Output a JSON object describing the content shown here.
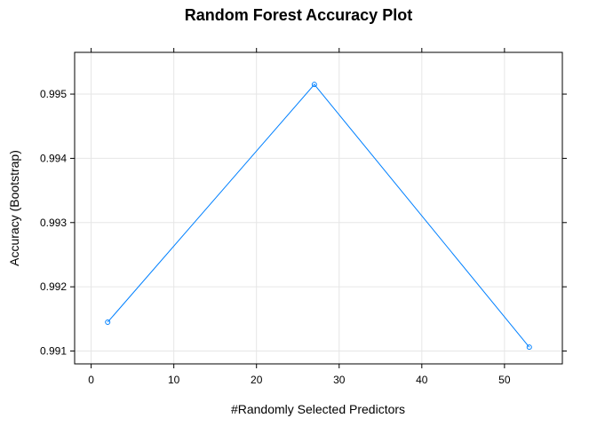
{
  "chart_data": {
    "type": "line",
    "title": "Random Forest Accuracy Plot",
    "xlabel": "#Randomly Selected Predictors",
    "ylabel": "Accuracy (Bootstrap)",
    "x": [
      2,
      27,
      53
    ],
    "series": [
      {
        "values": [
          0.99145,
          0.99515,
          0.99106
        ]
      }
    ],
    "xlim": [
      -2,
      57
    ],
    "ylim": [
      0.9908,
      0.99565
    ],
    "xticks": [
      0,
      10,
      20,
      30,
      40,
      50
    ],
    "xtick_labels": [
      "0",
      "10",
      "20",
      "30",
      "40",
      "50"
    ],
    "yticks": [
      0.991,
      0.992,
      0.993,
      0.994,
      0.995
    ],
    "ytick_labels": [
      "0.991",
      "0.992",
      "0.993",
      "0.994",
      "0.995"
    ],
    "grid": true,
    "line_color": "#0080FF",
    "marker": "open-circle"
  }
}
